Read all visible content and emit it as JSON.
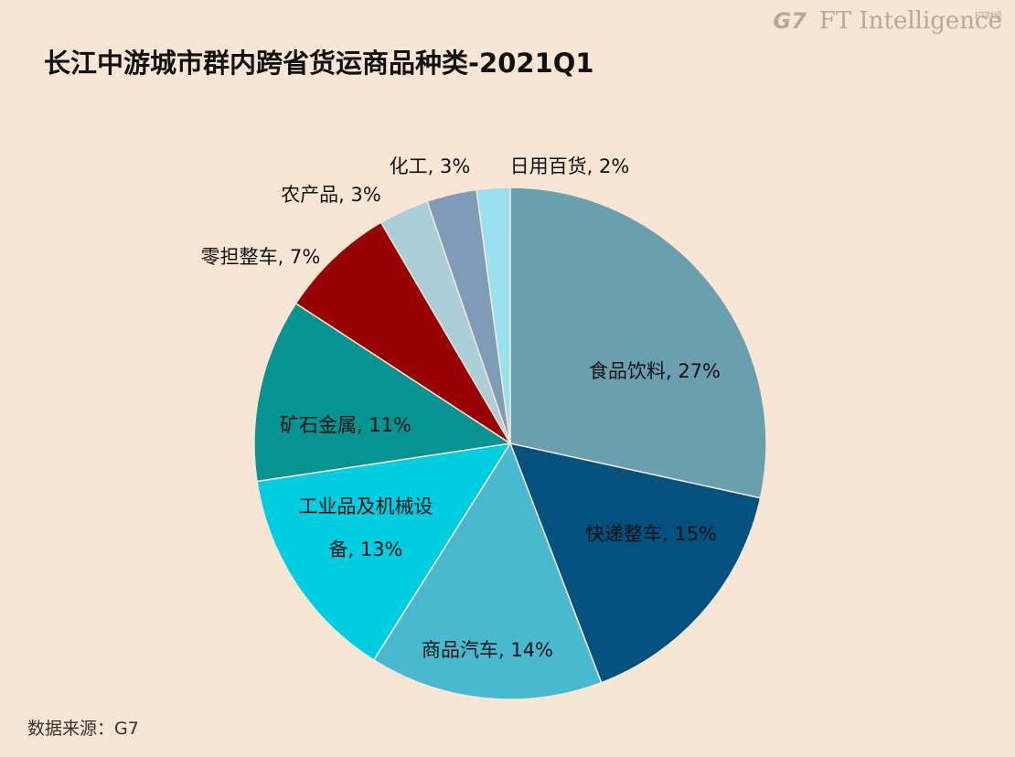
{
  "brand": {
    "logo": "G7",
    "name": "FT Intelligence",
    "name_cn": "FT财经"
  },
  "title": "长江中游城市群内跨省货运商品种类-2021Q1",
  "source": "数据来源：G7",
  "chart_data": {
    "type": "pie",
    "title": "长江中游城市群内跨省货运商品种类-2021Q1",
    "unit": "%",
    "slices": [
      {
        "name": "食品饮料",
        "label": "食品饮料, 27%",
        "value": 27,
        "color": "#6a9fb0"
      },
      {
        "name": "快递整车",
        "label": "快递整车, 15%",
        "value": 15,
        "color": "#02517f"
      },
      {
        "name": "商品汽车",
        "label": "商品汽车, 14%",
        "value": 14,
        "color": "#48b9cf"
      },
      {
        "name": "工业品及机械设备",
        "label_lines": [
          "工业品及机械设",
          "备, 13%"
        ],
        "value": 13,
        "color": "#00cde0"
      },
      {
        "name": "矿石金属",
        "label": "矿石金属, 11%",
        "value": 11,
        "color": "#079392"
      },
      {
        "name": "零担整车",
        "label": "零担整车, 7%",
        "value": 7,
        "color": "#980101"
      },
      {
        "name": "农产品",
        "label": "农产品, 3%",
        "value": 3,
        "color": "#abced8"
      },
      {
        "name": "化工",
        "label": "化工, 3%",
        "value": 3,
        "color": "#7e9bb7"
      },
      {
        "name": "日用百货",
        "label": "日用百货, 2%",
        "value": 2,
        "color": "#9ae1ef"
      }
    ]
  }
}
